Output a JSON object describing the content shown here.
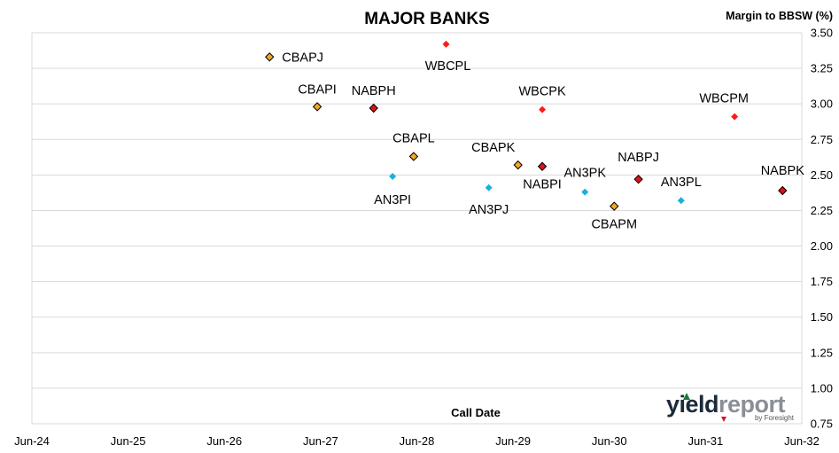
{
  "chart_data": {
    "type": "scatter",
    "title": "MAJOR BANKS",
    "ylabel": "Margin to BBSW (%)",
    "xlabel": "Call Date",
    "ylim": [
      0.75,
      3.5
    ],
    "yticks": [
      "3.50",
      "3.25",
      "3.00",
      "2.75",
      "2.50",
      "2.25",
      "2.00",
      "1.75",
      "1.50",
      "1.25",
      "1.00",
      "0.75"
    ],
    "xlim": [
      "2024-06-01",
      "2032-06-01"
    ],
    "xticks": [
      "Jun-24",
      "Jun-25",
      "Jun-26",
      "Jun-27",
      "Jun-28",
      "Jun-29",
      "Jun-30",
      "Jun-31",
      "Jun-32"
    ],
    "grid": "horizontal",
    "series": [
      {
        "color": "#f5a623",
        "outlined": true,
        "points": [
          {
            "label": "CBAPJ",
            "x": "2026-11-20",
            "y": 3.33
          },
          {
            "label": "CBAPI",
            "x": "2027-05-20",
            "y": 2.98
          },
          {
            "label": "CBAPL",
            "x": "2028-05-20",
            "y": 2.63
          },
          {
            "label": "CBAPK",
            "x": "2029-06-20",
            "y": 2.57
          },
          {
            "label": "CBAPM",
            "x": "2030-06-20",
            "y": 2.28
          }
        ]
      },
      {
        "color": "#d9141e",
        "outlined": true,
        "points": [
          {
            "label": "NABPH",
            "x": "2027-12-20",
            "y": 2.97
          },
          {
            "label": "NABPI",
            "x": "2029-09-20",
            "y": 2.56
          },
          {
            "label": "NABPJ",
            "x": "2030-09-20",
            "y": 2.47
          },
          {
            "label": "NABPK",
            "x": "2032-03-20",
            "y": 2.39
          }
        ]
      },
      {
        "color": "#ff1a1a",
        "outlined": false,
        "points": [
          {
            "label": "WBCPL",
            "x": "2028-09-20",
            "y": 3.42
          },
          {
            "label": "WBCPK",
            "x": "2029-09-20",
            "y": 2.96
          },
          {
            "label": "WBCPM",
            "x": "2031-09-20",
            "y": 2.91
          }
        ]
      },
      {
        "color": "#1ab0e0",
        "outlined": false,
        "points": [
          {
            "label": "AN3PI",
            "x": "2028-03-01",
            "y": 2.49
          },
          {
            "label": "AN3PJ",
            "x": "2029-03-01",
            "y": 2.41
          },
          {
            "label": "AN3PK",
            "x": "2030-03-01",
            "y": 2.38
          },
          {
            "label": "AN3PL",
            "x": "2031-03-01",
            "y": 2.32
          }
        ]
      }
    ]
  },
  "logo": {
    "brand_part1": "yield",
    "brand_part2": "report",
    "by_line": "by Foresight",
    "color_part1": "#1c2b3a",
    "color_part2": "#8a8f96",
    "accent": "#d9141e"
  }
}
